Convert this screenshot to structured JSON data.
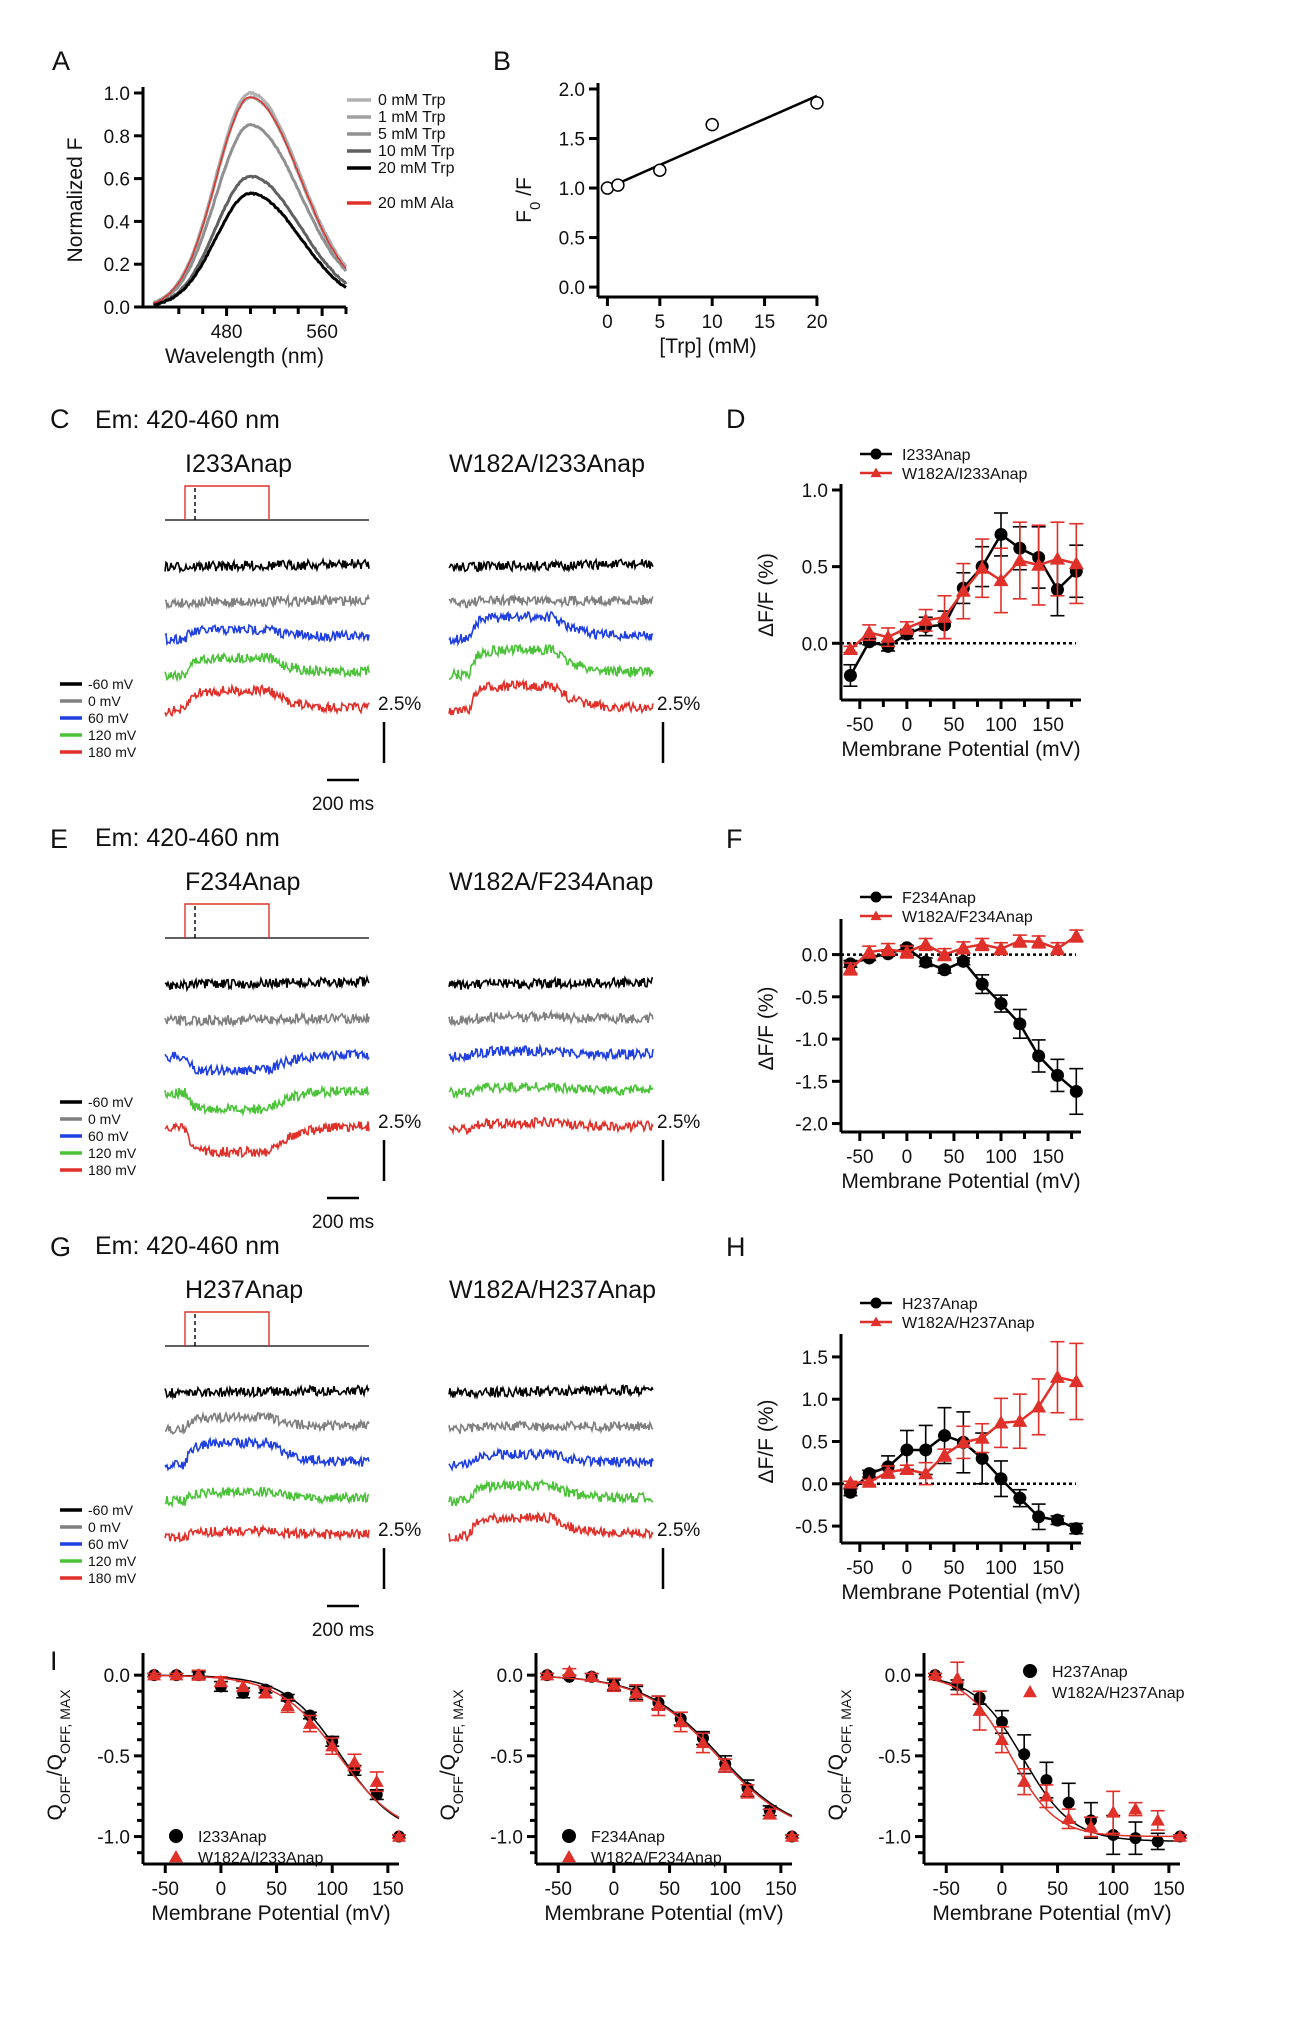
{
  "figure": {
    "panel_letters": [
      "A",
      "B",
      "C",
      "D",
      "E",
      "F",
      "G",
      "H",
      "I"
    ],
    "trace_colors": {
      "-60 mV": "#000000",
      "0 mV": "#808080",
      "60 mV": "#1f3fe0",
      "120 mV": "#4cc23a",
      "180 mV": "#e0302a"
    },
    "protocol_color": "#e0302a",
    "scale_bars": {
      "vertical": "2.5%",
      "horizontal": "200 ms"
    }
  },
  "chart_data": [
    {
      "panel": "A",
      "type": "line",
      "title": "",
      "xlabel": "Wavelength (nm)",
      "ylabel": "Normalized F",
      "xlim": [
        410,
        580
      ],
      "ylim": [
        0,
        1.0
      ],
      "xticks": [
        480,
        560
      ],
      "yticks": [
        0.0,
        0.2,
        0.4,
        0.6,
        0.8,
        1.0
      ],
      "legend_position": "top-right",
      "peak_wavelength": 500,
      "series": [
        {
          "name": "0 mM Trp",
          "color": "#b0b0b0",
          "peak": 1.0,
          "tail_580": 0.19
        },
        {
          "name": "1 mM Trp",
          "color": "#a0a0a0",
          "peak": 0.98,
          "tail_580": 0.17
        },
        {
          "name": "5 mM Trp",
          "color": "#909090",
          "peak": 0.85,
          "tail_580": 0.17
        },
        {
          "name": "10 mM Trp",
          "color": "#606060",
          "peak": 0.61,
          "tail_580": 0.11
        },
        {
          "name": "20 mM Trp",
          "color": "#000000",
          "peak": 0.53,
          "tail_580": 0.09
        },
        {
          "name": "20 mM Ala",
          "color": "#e0302a",
          "peak": 0.98,
          "tail_580": 0.18
        }
      ]
    },
    {
      "panel": "B",
      "type": "scatter",
      "xlabel": "[Trp] (mM)",
      "ylabel": "F0/F",
      "xlim": [
        0,
        20
      ],
      "ylim": [
        0,
        2.0
      ],
      "xticks": [
        0,
        5,
        10,
        15,
        20
      ],
      "yticks": [
        0.0,
        0.5,
        1.0,
        1.5,
        2.0
      ],
      "points": {
        "x": [
          0,
          1,
          5,
          10,
          20
        ],
        "y": [
          1.0,
          1.03,
          1.18,
          1.64,
          1.86
        ]
      },
      "fit_line": {
        "x": [
          0,
          20
        ],
        "y": [
          1.0,
          1.93
        ]
      }
    },
    {
      "panel": "C",
      "type": "line",
      "header": "Em: 420-460 nm",
      "traces": [
        {
          "title": "I233Anap",
          "show_protocol": true,
          "responses": {
            "-60 mV": 0.0,
            "0 mV": 0.0,
            "60 mV": 0.5,
            "120 mV": 1.0,
            "180 mV": 1.2
          }
        },
        {
          "title": "W182A/I233Anap",
          "show_protocol": false,
          "responses": {
            "-60 mV": 0.0,
            "0 mV": 0.1,
            "60 mV": 1.3,
            "120 mV": 1.5,
            "180 mV": 1.5
          }
        }
      ],
      "legend": [
        "-60 mV",
        "0 mV",
        "60 mV",
        "120 mV",
        "180 mV"
      ]
    },
    {
      "panel": "D",
      "type": "line",
      "xlabel": "Membrane Potential (mV)",
      "ylabel": "ΔF/F (%)",
      "xlim": [
        -70,
        185
      ],
      "ylim": [
        -0.37,
        1.0
      ],
      "xticks": [
        -50,
        0,
        50,
        100,
        150
      ],
      "yticks": [
        0.0,
        0.5,
        1.0
      ],
      "zero_line": true,
      "legend_position": "top-left",
      "x": [
        -60,
        -40,
        -20,
        0,
        20,
        40,
        60,
        80,
        100,
        120,
        140,
        160,
        180
      ],
      "series": [
        {
          "name": "I233Anap",
          "marker": "circle",
          "color": "#000000",
          "y": [
            -0.21,
            0.01,
            -0.02,
            0.06,
            0.11,
            0.12,
            0.36,
            0.5,
            0.71,
            0.62,
            0.56,
            0.35,
            0.47
          ],
          "err": [
            0.07,
            0.02,
            0.03,
            0.03,
            0.06,
            0.09,
            0.1,
            0.13,
            0.14,
            0.14,
            0.2,
            0.17,
            0.17
          ]
        },
        {
          "name": "W182A/I233Anap",
          "marker": "triangle",
          "color": "#e0302a",
          "y": [
            -0.04,
            0.07,
            0.04,
            0.1,
            0.15,
            0.17,
            0.34,
            0.49,
            0.41,
            0.54,
            0.51,
            0.55,
            0.52
          ],
          "err": [
            0.02,
            0.05,
            0.06,
            0.04,
            0.07,
            0.14,
            0.18,
            0.19,
            0.21,
            0.25,
            0.26,
            0.24,
            0.26
          ]
        }
      ]
    },
    {
      "panel": "E",
      "type": "line",
      "header": "Em: 420-460 nm",
      "traces": [
        {
          "title": "F234Anap",
          "show_protocol": true,
          "responses": {
            "-60 mV": 0.0,
            "0 mV": 0.0,
            "60 mV": -0.9,
            "120 mV": -1.1,
            "180 mV": -1.5
          }
        },
        {
          "title": "W182A/F234Anap",
          "show_protocol": false,
          "responses": {
            "-60 mV": 0.0,
            "0 mV": 0.2,
            "60 mV": 0.3,
            "120 mV": 0.3,
            "180 mV": 0.3
          }
        }
      ],
      "legend": [
        "-60 mV",
        "0 mV",
        "60 mV",
        "120 mV",
        "180 mV"
      ]
    },
    {
      "panel": "F",
      "type": "line",
      "xlabel": "Membrane Potential (mV)",
      "ylabel": "ΔF/F (%)",
      "xlim": [
        -70,
        185
      ],
      "ylim": [
        -2.1,
        0.35
      ],
      "xticks": [
        -50,
        0,
        50,
        100,
        150
      ],
      "yticks": [
        -2.0,
        -1.5,
        -1.0,
        -0.5,
        0.0
      ],
      "zero_line": true,
      "legend_position": "top-left",
      "x": [
        -60,
        -40,
        -20,
        0,
        20,
        40,
        60,
        80,
        100,
        120,
        140,
        160,
        180
      ],
      "series": [
        {
          "name": "F234Anap",
          "marker": "circle",
          "color": "#000000",
          "y": [
            -0.11,
            -0.04,
            0.01,
            0.08,
            -0.09,
            -0.18,
            -0.08,
            -0.35,
            -0.58,
            -0.82,
            -1.2,
            -1.43,
            -1.62
          ],
          "err": [
            0.04,
            0.03,
            0.03,
            0.03,
            0.05,
            0.04,
            0.04,
            0.11,
            0.1,
            0.17,
            0.19,
            0.19,
            0.27
          ]
        },
        {
          "name": "W182A/F234Anap",
          "marker": "triangle",
          "color": "#e0302a",
          "y": [
            -0.17,
            0.03,
            0.06,
            0.03,
            0.12,
            0.0,
            0.08,
            0.12,
            0.07,
            0.16,
            0.15,
            0.07,
            0.22
          ]
        },
        {
          "name": "_err",
          "hidden": true
        }
      ]
    },
    {
      "panel": "G",
      "type": "line",
      "header": "Em: 420-460 nm",
      "traces": [
        {
          "title": "H237Anap",
          "show_protocol": true,
          "responses": {
            "-60 mV": 0.0,
            "0 mV": 0.7,
            "60 mV": 1.3,
            "120 mV": 0.5,
            "180 mV": 0.3
          }
        },
        {
          "title": "W182A/H237Anap",
          "show_protocol": false,
          "responses": {
            "-60 mV": 0.0,
            "0 mV": 0.1,
            "60 mV": 0.6,
            "120 mV": 0.9,
            "180 mV": 1.1
          }
        }
      ],
      "legend": [
        "-60 mV",
        "0 mV",
        "60 mV",
        "120 mV",
        "180 mV"
      ]
    },
    {
      "panel": "H",
      "type": "line",
      "xlabel": "Membrane Potential (mV)",
      "ylabel": "ΔF/F (%)",
      "xlim": [
        -70,
        185
      ],
      "ylim": [
        -0.7,
        1.7
      ],
      "xticks": [
        -50,
        0,
        50,
        100,
        150
      ],
      "yticks": [
        -0.5,
        0.0,
        0.5,
        1.0,
        1.5
      ],
      "zero_line": true,
      "legend_position": "top-left",
      "x": [
        -60,
        -40,
        -20,
        0,
        20,
        40,
        60,
        80,
        100,
        120,
        140,
        160,
        180
      ],
      "series": [
        {
          "name": "H237Anap",
          "marker": "circle",
          "color": "#000000",
          "y": [
            -0.1,
            0.12,
            0.2,
            0.4,
            0.4,
            0.57,
            0.49,
            0.3,
            0.06,
            -0.17,
            -0.39,
            -0.43,
            -0.53
          ],
          "err": [
            0.04,
            0.04,
            0.13,
            0.23,
            0.29,
            0.33,
            0.36,
            0.3,
            0.21,
            0.1,
            0.15,
            0.05,
            0.06
          ]
        },
        {
          "name": "W182A/H237Anap",
          "marker": "triangle",
          "color": "#e0302a",
          "y": [
            0.01,
            0.02,
            0.14,
            0.17,
            0.12,
            0.34,
            0.49,
            0.54,
            0.72,
            0.74,
            0.91,
            1.26,
            1.21
          ],
          "err": [
            0.02,
            0.03,
            0.07,
            0.05,
            0.13,
            0.07,
            0.19,
            0.17,
            0.29,
            0.32,
            0.33,
            0.42,
            0.45
          ]
        }
      ]
    },
    {
      "panel": "I-1",
      "type": "scatter",
      "xlabel": "Membrane Potential (mV)",
      "ylabel": "QOFF/QOFF, MAX",
      "xlim": [
        -70,
        160
      ],
      "ylim": [
        -1.17,
        0.1
      ],
      "xticks": [
        -50,
        0,
        50,
        100,
        150
      ],
      "yticks": [
        -1.0,
        -0.5,
        0.0
      ],
      "legend_position": "bottom-left",
      "x": [
        -60,
        -40,
        -20,
        0,
        20,
        40,
        60,
        80,
        100,
        120,
        140,
        160
      ],
      "series": [
        {
          "name": "I233Anap",
          "marker": "circle",
          "color": "#000000",
          "y": [
            0.0,
            0.0,
            0.0,
            -0.07,
            -0.11,
            -0.09,
            -0.14,
            -0.25,
            -0.41,
            -0.59,
            -0.74,
            -1.0
          ],
          "err": [
            0.01,
            0.01,
            0.02,
            0.03,
            0.03,
            0.02,
            0.02,
            0.02,
            0.03,
            0.03,
            0.03,
            0.01
          ],
          "fit": {
            "v_half": 108,
            "slope": 25
          }
        },
        {
          "name": "W182A/I233Anap",
          "marker": "triangle",
          "color": "#e0302a",
          "y": [
            0.0,
            0.0,
            0.0,
            -0.04,
            -0.07,
            -0.11,
            -0.19,
            -0.3,
            -0.44,
            -0.54,
            -0.66,
            -1.0
          ],
          "err": [
            0.01,
            0.01,
            0.03,
            0.03,
            0.03,
            0.03,
            0.04,
            0.05,
            0.05,
            0.05,
            0.06,
            0.01
          ],
          "fit": {
            "v_half": 106,
            "slope": 27
          }
        }
      ]
    },
    {
      "panel": "I-2",
      "type": "scatter",
      "xlabel": "Membrane Potential (mV)",
      "ylabel": "QOFF/QOFF, MAX",
      "xlim": [
        -70,
        160
      ],
      "ylim": [
        -1.17,
        0.1
      ],
      "xticks": [
        -50,
        0,
        50,
        100,
        150
      ],
      "yticks": [
        -1.0,
        -0.5,
        0.0
      ],
      "legend_position": "bottom-left",
      "x": [
        -60,
        -40,
        -20,
        0,
        20,
        40,
        60,
        80,
        100,
        120,
        140,
        160
      ],
      "series": [
        {
          "name": "F234Anap",
          "marker": "circle",
          "color": "#000000",
          "y": [
            0.0,
            -0.01,
            -0.01,
            -0.06,
            -0.11,
            -0.17,
            -0.27,
            -0.39,
            -0.55,
            -0.7,
            -0.84,
            -1.0
          ],
          "err": [
            0.01,
            0.01,
            0.02,
            0.03,
            0.04,
            0.04,
            0.04,
            0.04,
            0.05,
            0.05,
            0.03,
            0.01
          ],
          "fit": {
            "v_half": 95,
            "slope": 34
          }
        },
        {
          "name": "W182A/F234Anap",
          "marker": "triangle",
          "color": "#e0302a",
          "y": [
            0.0,
            0.02,
            -0.01,
            -0.06,
            -0.11,
            -0.19,
            -0.29,
            -0.42,
            -0.56,
            -0.72,
            -0.86,
            -1.0
          ],
          "err": [
            0.01,
            0.02,
            0.02,
            0.04,
            0.05,
            0.06,
            0.06,
            0.06,
            0.04,
            0.04,
            0.03,
            0.01
          ],
          "fit": {
            "v_half": 93,
            "slope": 34
          }
        }
      ]
    },
    {
      "panel": "I-3",
      "type": "scatter",
      "xlabel": "Membrane Potential (mV)",
      "ylabel": "QOFF/QOFF, MAX",
      "xlim": [
        -70,
        160
      ],
      "ylim": [
        -1.17,
        0.1
      ],
      "xticks": [
        -50,
        0,
        50,
        100,
        150
      ],
      "yticks": [
        -1.0,
        -0.5,
        0.0
      ],
      "legend_position": "top-right",
      "x": [
        -60,
        -40,
        -20,
        0,
        20,
        40,
        60,
        80,
        100,
        120,
        140,
        160
      ],
      "series": [
        {
          "name": "H237Anap",
          "marker": "circle",
          "color": "#000000",
          "y": [
            0.0,
            -0.06,
            -0.14,
            -0.29,
            -0.49,
            -0.65,
            -0.79,
            -0.9,
            -0.99,
            -1.01,
            -1.03,
            -1.0
          ],
          "err": [
            0.01,
            0.03,
            0.04,
            0.07,
            0.12,
            0.11,
            0.12,
            0.11,
            0.12,
            0.1,
            0.05,
            0.01
          ],
          "fit": {
            "v_half": 19,
            "slope": 22,
            "floor": -1.03
          }
        },
        {
          "name": "W182A/H237Anap",
          "marker": "triangle",
          "color": "#e0302a",
          "y": [
            0.0,
            -0.02,
            -0.22,
            -0.4,
            -0.66,
            -0.75,
            -0.89,
            -0.94,
            -0.85,
            -0.83,
            -0.9,
            -1.0
          ],
          "err": [
            0.01,
            0.1,
            0.12,
            0.08,
            0.08,
            0.07,
            0.06,
            0.06,
            0.13,
            0.04,
            0.06,
            0.01
          ],
          "fit": {
            "v_half": 8,
            "slope": 20,
            "floor": -1.0
          }
        }
      ]
    }
  ]
}
